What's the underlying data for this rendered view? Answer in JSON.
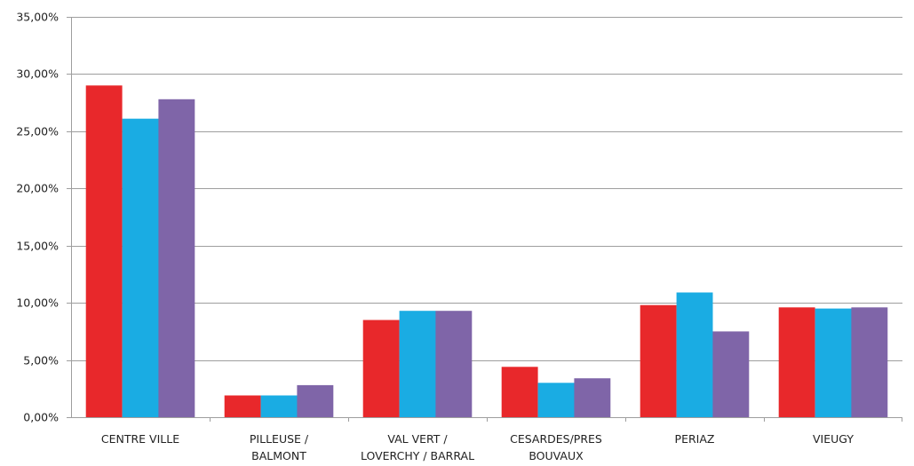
{
  "chart_data": {
    "type": "bar",
    "title": "",
    "xlabel": "",
    "ylabel": "",
    "ylim": [
      0,
      35
    ],
    "yticks": [
      0,
      5,
      10,
      15,
      20,
      25,
      30,
      35
    ],
    "ytick_labels": [
      "0,00%",
      "5,00%",
      "10,00%",
      "15,00%",
      "20,00%",
      "25,00%",
      "30,00%",
      "35,00%"
    ],
    "grid": true,
    "legend": "none",
    "categories": [
      [
        "CENTRE VILLE"
      ],
      [
        "PILLEUSE /",
        "BALMONT"
      ],
      [
        "VAL VERT /",
        "LOVERCHY / BARRAL"
      ],
      [
        "CESARDES/PRES",
        "BOUVAUX"
      ],
      [
        "PERIAZ"
      ],
      [
        "VIEUGY"
      ]
    ],
    "series": [
      {
        "color": "#e8282b",
        "values": [
          29.0,
          1.9,
          8.5,
          4.4,
          9.8,
          9.6
        ]
      },
      {
        "color": "#1aace3",
        "values": [
          26.1,
          1.9,
          9.3,
          3.0,
          10.9,
          9.5
        ]
      },
      {
        "color": "#7f65a8",
        "values": [
          27.8,
          2.8,
          9.3,
          3.4,
          7.5,
          9.6
        ]
      }
    ]
  }
}
